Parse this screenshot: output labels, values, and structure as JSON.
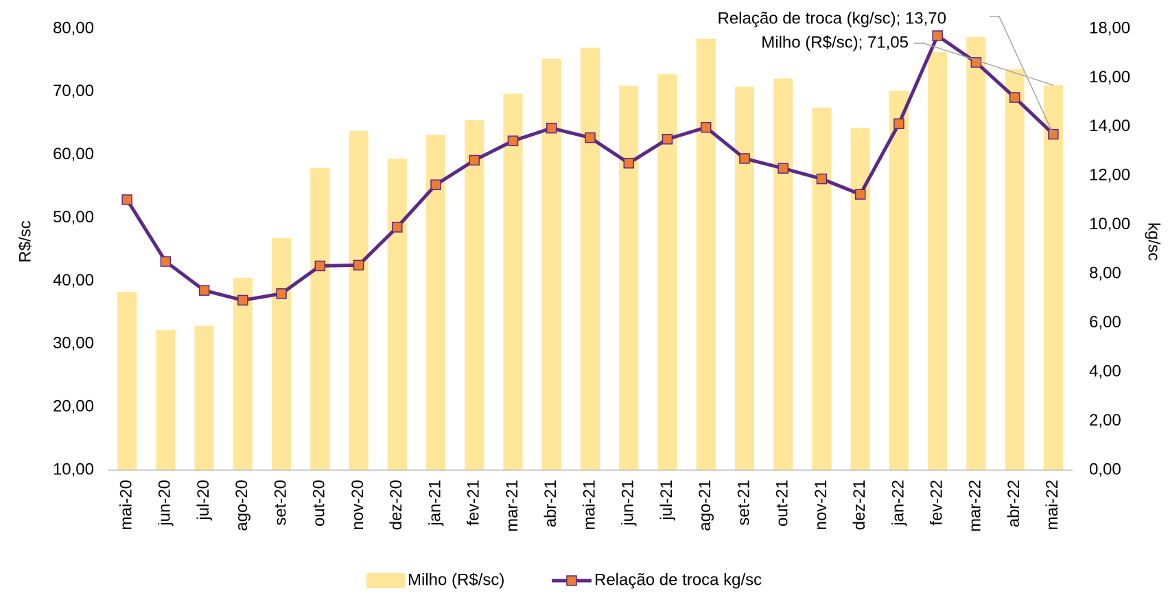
{
  "chart_data": {
    "type": "bar_line",
    "categories": [
      "mai-20",
      "jun-20",
      "jul-20",
      "ago-20",
      "set-20",
      "out-20",
      "nov-20",
      "dez-20",
      "jan-21",
      "fev-21",
      "mar-21",
      "abr-21",
      "mai-21",
      "jun-21",
      "jul-21",
      "ago-21",
      "set-21",
      "out-21",
      "nov-21",
      "dez-21",
      "jan-22",
      "fev-22",
      "mar-22",
      "abr-22",
      "mai-22"
    ],
    "series": [
      {
        "name": "Milho (R$/sc)",
        "type": "bar",
        "color": "#ffe699",
        "axis": "y",
        "values": [
          38.3,
          32.2,
          32.9,
          40.5,
          46.8,
          57.9,
          63.8,
          59.4,
          63.2,
          65.5,
          69.7,
          75.2,
          77.0,
          71.0,
          72.8,
          78.4,
          70.8,
          72.1,
          67.5,
          64.3,
          70.2,
          76.3,
          78.7,
          73.6,
          71.05
        ]
      },
      {
        "name": "Relação de troca kg/sc",
        "type": "line",
        "color": "#5b2a86",
        "marker_color": "#ed7d31",
        "axis": "y2",
        "values": [
          11.03,
          8.51,
          7.33,
          6.93,
          7.2,
          8.33,
          8.36,
          9.91,
          11.64,
          12.64,
          13.43,
          13.95,
          13.56,
          12.52,
          13.5,
          13.98,
          12.71,
          12.31,
          11.88,
          11.25,
          14.13,
          17.72,
          16.63,
          15.2,
          13.7
        ]
      }
    ],
    "ylabel": "R$/sc",
    "y2label": "kg/sc",
    "ylim": [
      10,
      80
    ],
    "yticks": [
      {
        "value": 10,
        "label": "10,00"
      },
      {
        "value": 20,
        "label": "20,00"
      },
      {
        "value": 30,
        "label": "30,00"
      },
      {
        "value": 40,
        "label": "40,00"
      },
      {
        "value": 50,
        "label": "50,00"
      },
      {
        "value": 60,
        "label": "60,00"
      },
      {
        "value": 70,
        "label": "70,00"
      },
      {
        "value": 80,
        "label": "80,00"
      }
    ],
    "y2lim": [
      0,
      18
    ],
    "y2ticks": [
      {
        "value": 0,
        "label": "0,00"
      },
      {
        "value": 2,
        "label": "2,00"
      },
      {
        "value": 4,
        "label": "4,00"
      },
      {
        "value": 6,
        "label": "6,00"
      },
      {
        "value": 8,
        "label": "8,00"
      },
      {
        "value": 10,
        "label": "10,00"
      },
      {
        "value": 12,
        "label": "12,00"
      },
      {
        "value": 14,
        "label": "14,00"
      },
      {
        "value": 16,
        "label": "16,00"
      },
      {
        "value": 18,
        "label": "18,00"
      }
    ],
    "annotations": [
      "Relação de troca (kg/sc); 13,70",
      "Milho (R$/sc); 71,05"
    ],
    "legend": "bottom"
  }
}
